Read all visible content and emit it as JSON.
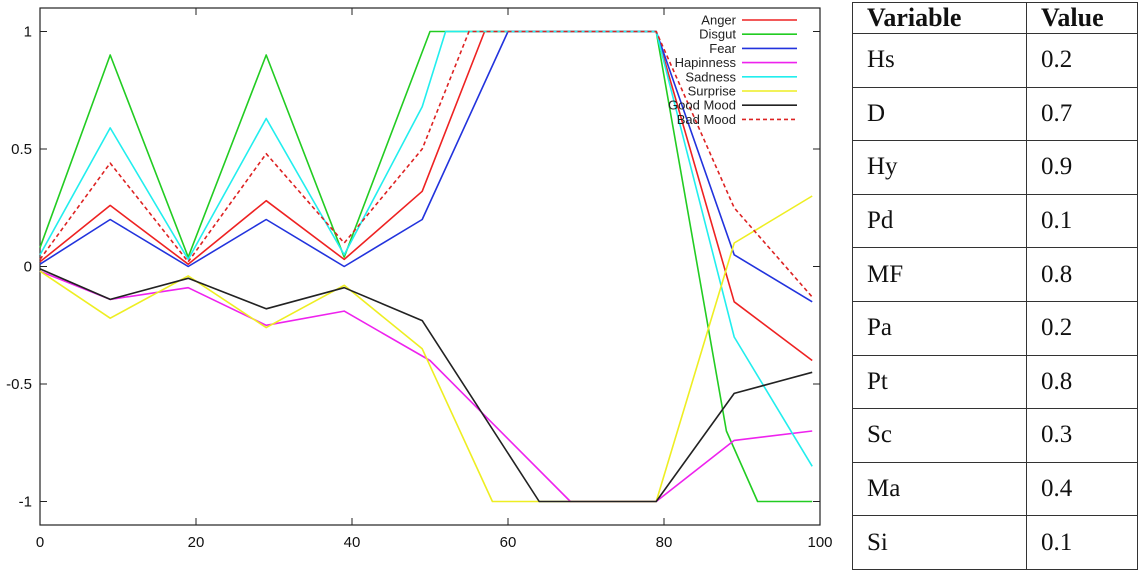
{
  "chart_data": {
    "type": "line",
    "xlim": [
      0,
      100
    ],
    "ylim": [
      -1.1,
      1.1
    ],
    "x_ticks": [
      "0",
      "20",
      "40",
      "60",
      "80",
      "100"
    ],
    "y_ticks": [
      "1",
      "0.5",
      "0",
      "-0.5",
      "-1"
    ],
    "y_tick_values": [
      1,
      0.5,
      0,
      -0.5,
      -1
    ],
    "x_tick_values": [
      0,
      20,
      40,
      60,
      80,
      100
    ],
    "legend_position": "top-right",
    "grid": false,
    "series": [
      {
        "name": "Anger",
        "color": "#ee2222",
        "dashed": false,
        "x": [
          0,
          9,
          19,
          29,
          39,
          49,
          57,
          79,
          89,
          99
        ],
        "y": [
          0.02,
          0.26,
          0.01,
          0.28,
          0.03,
          0.32,
          1,
          1,
          -0.15,
          -0.4
        ]
      },
      {
        "name": "Disgut",
        "color": "#22cc22",
        "dashed": false,
        "x": [
          0,
          9,
          19,
          29,
          39,
          50,
          79,
          88,
          92,
          99
        ],
        "y": [
          0.08,
          0.9,
          0.04,
          0.9,
          0.04,
          1,
          1,
          -0.7,
          -1,
          -1
        ]
      },
      {
        "name": "Fear",
        "color": "#2233dd",
        "dashed": false,
        "x": [
          0,
          9,
          19,
          29,
          39,
          49,
          60,
          79,
          89,
          99
        ],
        "y": [
          0.01,
          0.2,
          0.0,
          0.2,
          0.0,
          0.2,
          1,
          1,
          0.05,
          -0.15
        ]
      },
      {
        "name": "Hapinness",
        "color": "#ee22ee",
        "dashed": false,
        "x": [
          0,
          9,
          19,
          29,
          39,
          50,
          68,
          79,
          89,
          99
        ],
        "y": [
          -0.02,
          -0.14,
          -0.09,
          -0.25,
          -0.19,
          -0.4,
          -1,
          -1,
          -0.74,
          -0.7
        ]
      },
      {
        "name": "Sadness",
        "color": "#22eeee",
        "dashed": false,
        "x": [
          0,
          9,
          19,
          29,
          39,
          49,
          52,
          79,
          89,
          99
        ],
        "y": [
          0.05,
          0.59,
          0.03,
          0.63,
          0.05,
          0.68,
          1,
          1,
          -0.3,
          -0.85
        ]
      },
      {
        "name": "Surprise",
        "color": "#eeee22",
        "dashed": false,
        "x": [
          0,
          9,
          19,
          29,
          39,
          49,
          58,
          79,
          89,
          99
        ],
        "y": [
          -0.02,
          -0.22,
          -0.04,
          -0.26,
          -0.08,
          -0.35,
          -1,
          -1,
          0.1,
          0.3
        ]
      },
      {
        "name": "Good Mood",
        "color": "#222222",
        "dashed": false,
        "x": [
          0,
          9,
          19,
          29,
          39,
          49,
          64,
          79,
          89,
          99
        ],
        "y": [
          -0.01,
          -0.14,
          -0.05,
          -0.18,
          -0.09,
          -0.23,
          -1,
          -1,
          -0.54,
          -0.45
        ]
      },
      {
        "name": "Bad Mood",
        "color": "#dd2222",
        "dashed": true,
        "x": [
          0,
          9,
          19,
          29,
          39,
          49,
          55,
          79,
          89,
          99
        ],
        "y": [
          0.03,
          0.44,
          0.02,
          0.48,
          0.1,
          0.5,
          1,
          1,
          0.25,
          -0.13
        ]
      }
    ]
  },
  "table": {
    "headers": [
      "Variable",
      "Value"
    ],
    "rows": [
      [
        "Hs",
        "0.2"
      ],
      [
        "D",
        "0.7"
      ],
      [
        "Hy",
        "0.9"
      ],
      [
        "Pd",
        "0.1"
      ],
      [
        "MF",
        "0.8"
      ],
      [
        "Pa",
        "0.2"
      ],
      [
        "Pt",
        "0.8"
      ],
      [
        "Sc",
        "0.3"
      ],
      [
        "Ma",
        "0.4"
      ],
      [
        "Si",
        "0.1"
      ]
    ]
  }
}
